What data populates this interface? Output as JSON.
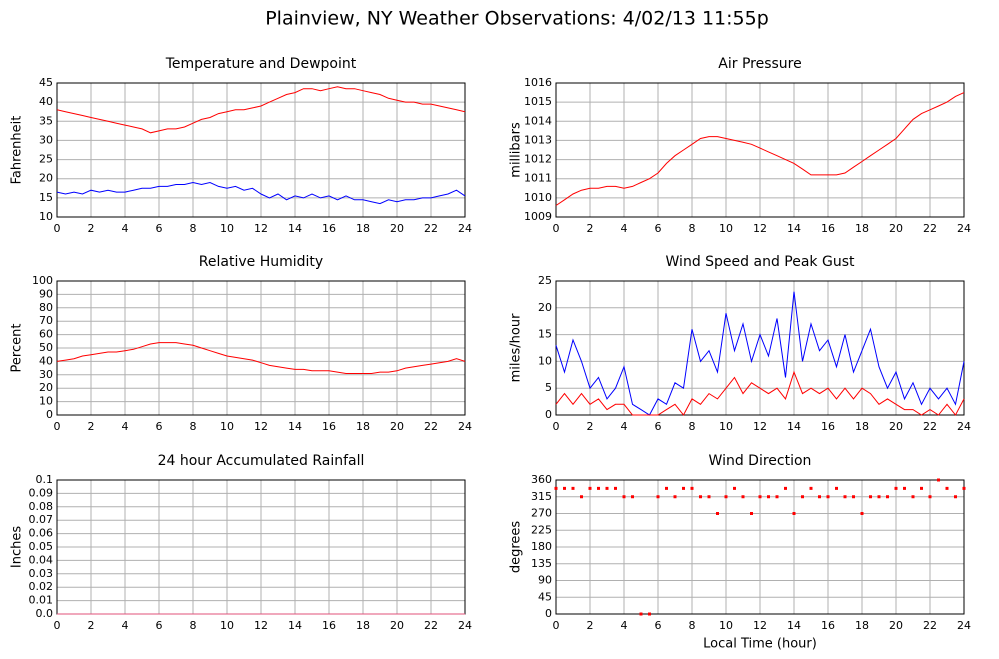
{
  "title": "Plainview, NY Weather Observations: 4/02/13 11:55p",
  "chart_data": [
    {
      "type": "line",
      "title": "Temperature and Dewpoint",
      "ylabel": "Fahrenheit",
      "x": [
        0,
        0.5,
        1,
        1.5,
        2,
        2.5,
        3,
        3.5,
        4,
        4.5,
        5,
        5.5,
        6,
        6.5,
        7,
        7.5,
        8,
        8.5,
        9,
        9.5,
        10,
        10.5,
        11,
        11.5,
        12,
        12.5,
        13,
        13.5,
        14,
        14.5,
        15,
        15.5,
        16,
        16.5,
        17,
        17.5,
        18,
        18.5,
        19,
        19.5,
        20,
        20.5,
        21,
        21.5,
        22,
        22.5,
        23,
        23.5,
        24
      ],
      "series": [
        {
          "color": "#ff0000",
          "values": [
            38,
            37.5,
            37,
            36.5,
            36,
            35.5,
            35,
            34.5,
            34,
            33.5,
            33,
            32,
            32.5,
            33,
            33,
            33.5,
            34.5,
            35.5,
            36,
            37,
            37.5,
            38,
            38,
            38.5,
            39,
            40,
            41,
            42,
            42.5,
            43.5,
            43.5,
            43,
            43.5,
            44,
            43.5,
            43.5,
            43,
            42.5,
            42,
            41,
            40.5,
            40,
            40,
            39.5,
            39.5,
            39,
            38.5,
            38,
            37.5
          ]
        },
        {
          "color": "#0000ff",
          "values": [
            16.5,
            16,
            16.5,
            16,
            17,
            16.5,
            17,
            16.5,
            16.5,
            17,
            17.5,
            17.5,
            18,
            18,
            18.5,
            18.5,
            19,
            18.5,
            19,
            18,
            17.5,
            18,
            17,
            17.5,
            16,
            15,
            16,
            14.5,
            15.5,
            15,
            16,
            15,
            15.5,
            14.5,
            15.5,
            14.5,
            14.5,
            14,
            13.5,
            14.5,
            14,
            14.5,
            14.5,
            15,
            15,
            15.5,
            16,
            17,
            15.5
          ]
        }
      ],
      "xlim": [
        0,
        24
      ],
      "xticks": [
        0,
        2,
        4,
        6,
        8,
        10,
        12,
        14,
        16,
        18,
        20,
        22,
        24
      ],
      "ylim": [
        10,
        45
      ],
      "yticks": [
        10,
        15,
        20,
        25,
        30,
        35,
        40,
        45
      ],
      "grid": true
    },
    {
      "type": "line",
      "title": "Air Pressure",
      "ylabel": "millibars",
      "x": [
        0,
        0.5,
        1,
        1.5,
        2,
        2.5,
        3,
        3.5,
        4,
        4.5,
        5,
        5.5,
        6,
        6.5,
        7,
        7.5,
        8,
        8.5,
        9,
        9.5,
        10,
        10.5,
        11,
        11.5,
        12,
        12.5,
        13,
        13.5,
        14,
        14.5,
        15,
        15.5,
        16,
        16.5,
        17,
        17.5,
        18,
        18.5,
        19,
        19.5,
        20,
        20.5,
        21,
        21.5,
        22,
        22.5,
        23,
        23.5,
        24
      ],
      "series": [
        {
          "color": "#ff0000",
          "values": [
            1009.6,
            1009.9,
            1010.2,
            1010.4,
            1010.5,
            1010.5,
            1010.6,
            1010.6,
            1010.5,
            1010.6,
            1010.8,
            1011.0,
            1011.3,
            1011.8,
            1012.2,
            1012.5,
            1012.8,
            1013.1,
            1013.2,
            1013.2,
            1013.1,
            1013.0,
            1012.9,
            1012.8,
            1012.6,
            1012.4,
            1012.2,
            1012.0,
            1011.8,
            1011.5,
            1011.2,
            1011.2,
            1011.2,
            1011.2,
            1011.3,
            1011.6,
            1011.9,
            1012.2,
            1012.5,
            1012.8,
            1013.1,
            1013.6,
            1014.1,
            1014.4,
            1014.6,
            1014.8,
            1015.0,
            1015.3,
            1015.5
          ]
        }
      ],
      "xlim": [
        0,
        24
      ],
      "xticks": [
        0,
        2,
        4,
        6,
        8,
        10,
        12,
        14,
        16,
        18,
        20,
        22,
        24
      ],
      "ylim": [
        1009,
        1016
      ],
      "yticks": [
        1009,
        1010,
        1011,
        1012,
        1013,
        1014,
        1015,
        1016
      ],
      "grid": true
    },
    {
      "type": "line",
      "title": "Relative Humidity",
      "ylabel": "Percent",
      "x": [
        0,
        0.5,
        1,
        1.5,
        2,
        2.5,
        3,
        3.5,
        4,
        4.5,
        5,
        5.5,
        6,
        6.5,
        7,
        7.5,
        8,
        8.5,
        9,
        9.5,
        10,
        10.5,
        11,
        11.5,
        12,
        12.5,
        13,
        13.5,
        14,
        14.5,
        15,
        15.5,
        16,
        16.5,
        17,
        17.5,
        18,
        18.5,
        19,
        19.5,
        20,
        20.5,
        21,
        21.5,
        22,
        22.5,
        23,
        23.5,
        24
      ],
      "series": [
        {
          "color": "#ff0000",
          "values": [
            40,
            41,
            42,
            44,
            45,
            46,
            47,
            47,
            48,
            49,
            51,
            53,
            54,
            54,
            54,
            53,
            52,
            50,
            48,
            46,
            44,
            43,
            42,
            41,
            39,
            37,
            36,
            35,
            34,
            34,
            33,
            33,
            33,
            32,
            31,
            31,
            31,
            31,
            32,
            32,
            33,
            35,
            36,
            37,
            38,
            39,
            40,
            42,
            40
          ]
        }
      ],
      "xlim": [
        0,
        24
      ],
      "xticks": [
        0,
        2,
        4,
        6,
        8,
        10,
        12,
        14,
        16,
        18,
        20,
        22,
        24
      ],
      "ylim": [
        0,
        100
      ],
      "yticks": [
        0,
        10,
        20,
        30,
        40,
        50,
        60,
        70,
        80,
        90,
        100
      ],
      "grid": true
    },
    {
      "type": "line",
      "title": "Wind Speed and Peak Gust",
      "ylabel": "miles/hour",
      "x": [
        0,
        0.5,
        1,
        1.5,
        2,
        2.5,
        3,
        3.5,
        4,
        4.5,
        5,
        5.5,
        6,
        6.5,
        7,
        7.5,
        8,
        8.5,
        9,
        9.5,
        10,
        10.5,
        11,
        11.5,
        12,
        12.5,
        13,
        13.5,
        14,
        14.5,
        15,
        15.5,
        16,
        16.5,
        17,
        17.5,
        18,
        18.5,
        19,
        19.5,
        20,
        20.5,
        21,
        21.5,
        22,
        22.5,
        23,
        23.5,
        24
      ],
      "series": [
        {
          "color": "#0000ff",
          "values": [
            13,
            8,
            14,
            10,
            5,
            7,
            3,
            5,
            9,
            2,
            1,
            0,
            3,
            2,
            6,
            5,
            16,
            10,
            12,
            8,
            19,
            12,
            17,
            10,
            15,
            11,
            18,
            7,
            23,
            10,
            17,
            12,
            14,
            9,
            15,
            8,
            12,
            16,
            9,
            5,
            8,
            3,
            6,
            2,
            5,
            3,
            5,
            2,
            10
          ]
        },
        {
          "color": "#ff0000",
          "values": [
            2,
            4,
            2,
            4,
            2,
            3,
            1,
            2,
            2,
            0,
            0,
            0,
            0,
            1,
            2,
            0,
            3,
            2,
            4,
            3,
            5,
            7,
            4,
            6,
            5,
            4,
            5,
            3,
            8,
            4,
            5,
            4,
            5,
            3,
            5,
            3,
            5,
            4,
            2,
            3,
            2,
            1,
            1,
            0,
            1,
            0,
            2,
            0,
            3
          ]
        }
      ],
      "xlim": [
        0,
        24
      ],
      "xticks": [
        0,
        2,
        4,
        6,
        8,
        10,
        12,
        14,
        16,
        18,
        20,
        22,
        24
      ],
      "ylim": [
        0,
        25
      ],
      "yticks": [
        0,
        5,
        10,
        15,
        20,
        25
      ],
      "grid": true
    },
    {
      "type": "line",
      "title": "24 hour Accumulated Rainfall",
      "ylabel": "Inches",
      "x": [
        0,
        24
      ],
      "series": [
        {
          "color": "#e0507a",
          "values": [
            0,
            0
          ]
        }
      ],
      "xlim": [
        0,
        24
      ],
      "xticks": [
        0,
        2,
        4,
        6,
        8,
        10,
        12,
        14,
        16,
        18,
        20,
        22,
        24
      ],
      "ylim": [
        0,
        0.1
      ],
      "yticks": [
        {
          "value": 0,
          "label": "0.0"
        },
        0.01,
        0.02,
        0.03,
        0.04,
        0.05,
        0.06,
        0.07,
        0.08,
        0.09,
        0.1
      ],
      "grid": true
    },
    {
      "type": "scatter",
      "title": "Wind Direction",
      "ylabel": "degrees",
      "xlabel": "Local Time (hour)",
      "x": [
        0,
        0.5,
        1,
        1.5,
        2,
        2.5,
        3,
        3.5,
        4,
        4.5,
        5,
        5.5,
        6,
        6.5,
        7,
        7.5,
        8,
        8.5,
        9,
        9.5,
        10,
        10.5,
        11,
        11.5,
        12,
        12.5,
        13,
        13.5,
        14,
        14.5,
        15,
        15.5,
        16,
        16.5,
        17,
        17.5,
        18,
        18.5,
        19,
        19.5,
        20,
        20.5,
        21,
        21.5,
        22,
        22.5,
        23,
        23.5,
        24
      ],
      "series": [
        {
          "color": "#ff0000",
          "values": [
            337.5,
            337.5,
            337.5,
            315,
            337.5,
            337.5,
            337.5,
            337.5,
            315,
            315,
            0,
            0,
            315,
            337.5,
            315,
            337.5,
            337.5,
            315,
            315,
            270,
            315,
            337.5,
            315,
            270,
            315,
            315,
            315,
            337.5,
            270,
            315,
            337.5,
            315,
            315,
            337.5,
            315,
            315,
            270,
            315,
            315,
            315,
            337.5,
            337.5,
            315,
            337.5,
            315,
            360,
            337.5,
            315,
            337.5
          ]
        }
      ],
      "xlim": [
        0,
        24
      ],
      "xticks": [
        0,
        2,
        4,
        6,
        8,
        10,
        12,
        14,
        16,
        18,
        20,
        22,
        24
      ],
      "ylim": [
        0,
        360
      ],
      "yticks": [
        0,
        45,
        90,
        135,
        180,
        225,
        270,
        315,
        360
      ],
      "grid": true
    }
  ]
}
